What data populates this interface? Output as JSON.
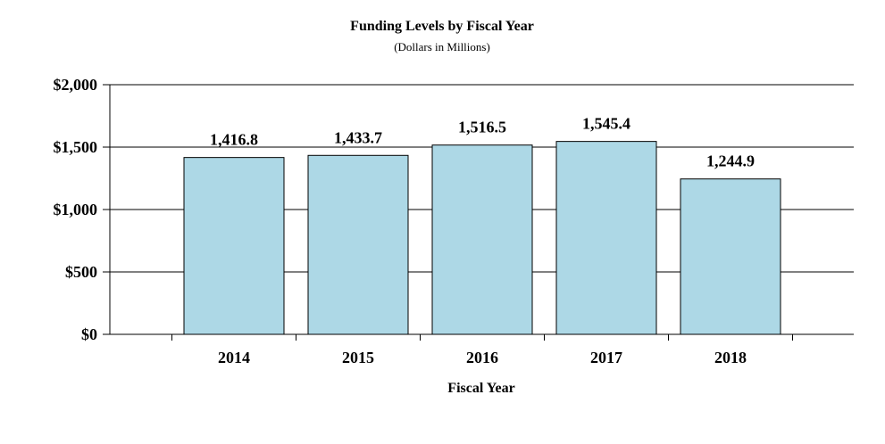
{
  "chart_data": {
    "type": "bar",
    "title": "Funding Levels by Fiscal Year",
    "subtitle": "(Dollars in Millions)",
    "xlabel": "Fiscal Year",
    "ylabel": "",
    "categories": [
      "2014",
      "2015",
      "2016",
      "2017",
      "2018"
    ],
    "values": [
      1416.8,
      1433.7,
      1516.5,
      1545.4,
      1244.9
    ],
    "data_labels": [
      "1,416.8",
      "1,433.7",
      "1,516.5",
      "1,545.4",
      "1,244.9"
    ],
    "ylim": [
      0,
      2000
    ],
    "yticks": [
      0,
      500,
      1000,
      1500,
      2000
    ],
    "ytick_labels": [
      "$0",
      "$500",
      "$1,000",
      "$1,500",
      "$2,000"
    ],
    "grid": true,
    "bar_color": "#ADD8E6"
  }
}
